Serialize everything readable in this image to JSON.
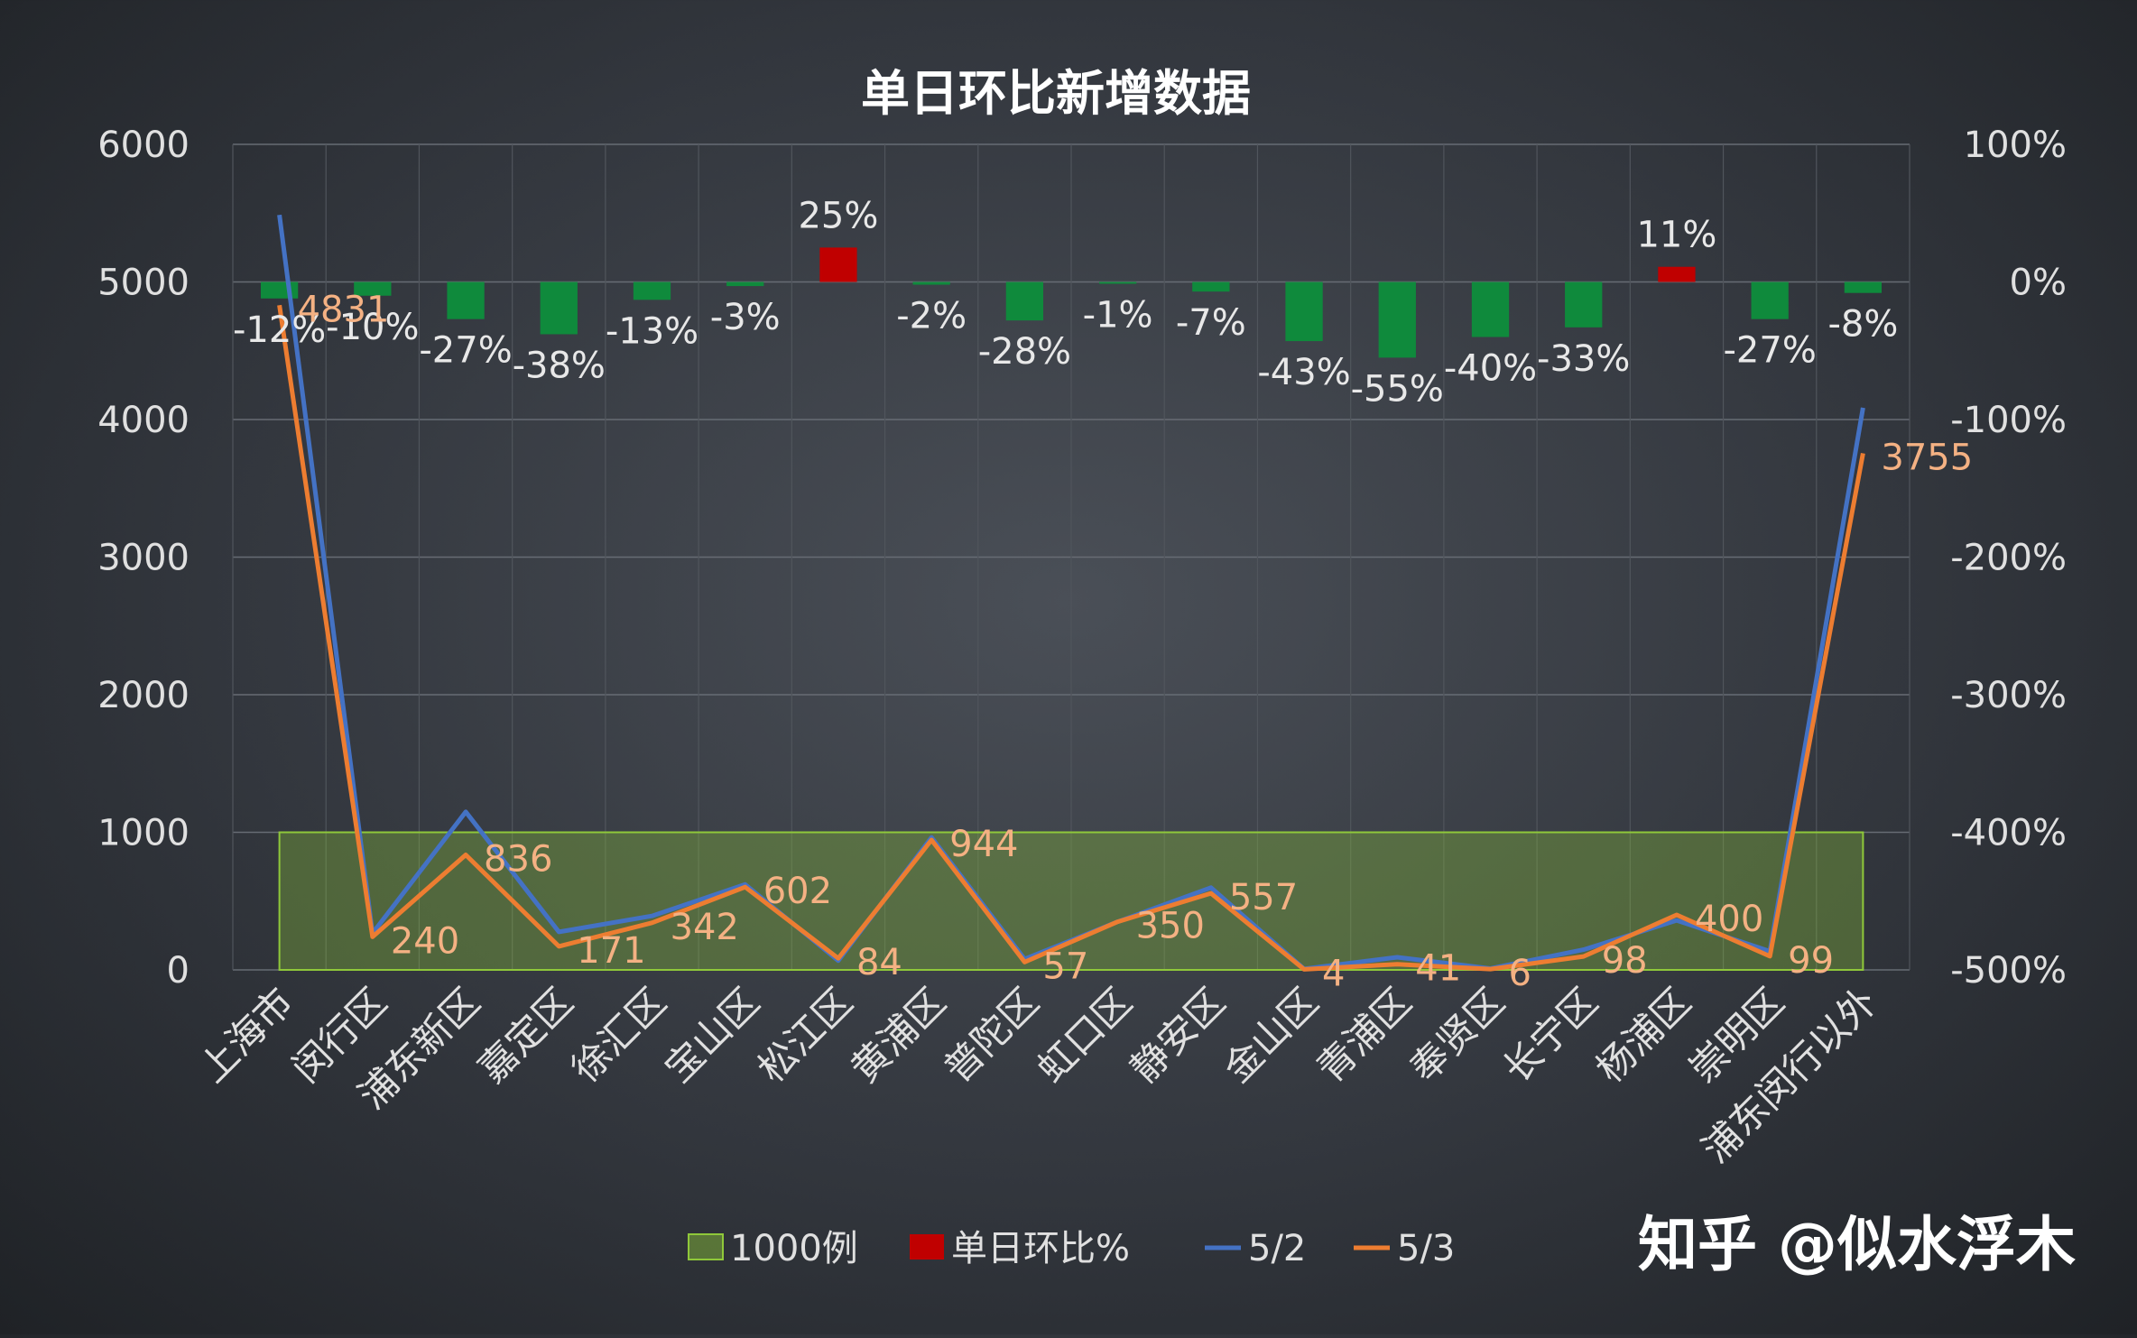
{
  "chart_data": {
    "type": "bar",
    "title": "单日环比新增数据",
    "categories": [
      "上海市",
      "闵行区",
      "浦东新区",
      "嘉定区",
      "徐汇区",
      "宝山区",
      "松江区",
      "黄浦区",
      "普陀区",
      "虹口区",
      "静安区",
      "金山区",
      "青浦区",
      "奉贤区",
      "长宁区",
      "杨浦区",
      "崇明区",
      "浦东闵行以外"
    ],
    "y_left": {
      "min": 0,
      "max": 6000,
      "ticks": [
        "0",
        "1000",
        "2000",
        "3000",
        "4000",
        "5000",
        "6000"
      ]
    },
    "y_right": {
      "min": -500,
      "max": 100,
      "ticks": [
        "-500%",
        "-400%",
        "-300%",
        "-200%",
        "-100%",
        "0%",
        "100%"
      ]
    },
    "grid": true,
    "legend_position": "bottom",
    "series": [
      {
        "name": "1000例",
        "type": "area",
        "axis": "left",
        "color": "#8fc83a",
        "value": 1000
      },
      {
        "name": "单日环比%",
        "type": "bar",
        "axis": "right",
        "neg_color": "#0f8a3c",
        "pos_color": "#c00000",
        "values": [
          -12,
          -10,
          -27,
          -38,
          -13,
          -3,
          25,
          -2,
          -28,
          -1,
          -7,
          -43,
          -55,
          -40,
          -33,
          11,
          -27,
          -8
        ],
        "labels": [
          "-12%",
          "-10%",
          "-27%",
          "-38%",
          "-13%",
          "-3%",
          "25%",
          "-2%",
          "-28%",
          "-1%",
          "-7%",
          "-43%",
          "-55%",
          "-40%",
          "-33%",
          "11%",
          "-27%",
          "-8%"
        ]
      },
      {
        "name": "5/2",
        "type": "line",
        "axis": "left",
        "color": "#4472c4",
        "values": [
          5487,
          266,
          1149,
          276,
          392,
          621,
          67,
          963,
          79,
          350,
          598,
          7,
          92,
          10,
          147,
          360,
          135,
          4086
        ]
      },
      {
        "name": "5/3",
        "type": "line",
        "axis": "left",
        "color": "#ed7d31",
        "values": [
          4831,
          240,
          836,
          171,
          342,
          602,
          84,
          944,
          57,
          350,
          557,
          4,
          41,
          6,
          98,
          400,
          99,
          3755
        ],
        "labels": [
          "4831",
          "240",
          "836",
          "171",
          "342",
          "602",
          "84",
          "944",
          "57",
          "350",
          "557",
          "4",
          "41",
          "6",
          "98",
          "400",
          "99",
          "3755"
        ]
      }
    ]
  },
  "watermark": "知乎 @似水浮木"
}
